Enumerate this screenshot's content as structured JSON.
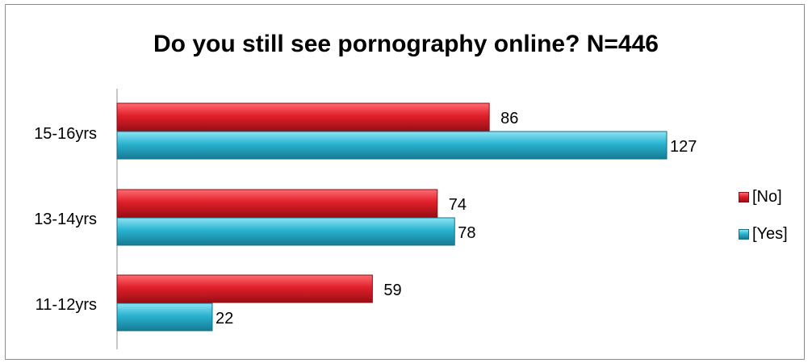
{
  "chart_data": {
    "type": "bar",
    "orientation": "horizontal",
    "title": "Do you still see pornography online? N=446",
    "categories": [
      "15-16yrs",
      "13-14yrs",
      "11-12yrs"
    ],
    "series": [
      {
        "name": "[No]",
        "values": [
          86,
          74,
          59
        ],
        "color": "#e0202a"
      },
      {
        "name": "[Yes]",
        "values": [
          127,
          78,
          22
        ],
        "color": "#2ab3d0"
      }
    ],
    "xlim": [
      0,
      140
    ],
    "grid": false,
    "legend_position": "right"
  }
}
